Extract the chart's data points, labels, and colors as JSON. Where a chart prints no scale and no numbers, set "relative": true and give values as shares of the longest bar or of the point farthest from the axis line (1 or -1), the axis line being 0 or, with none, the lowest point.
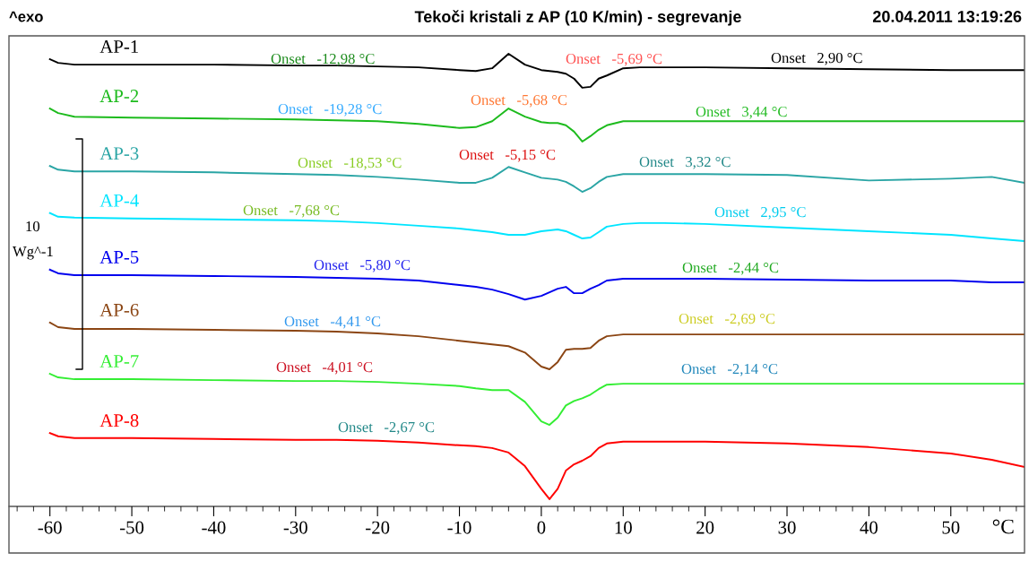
{
  "chart_data": {
    "type": "line",
    "title": "Tekoči kristali z AP (10 K/min) - segrevanje",
    "xlabel": "°C",
    "ylabel": "Wg^-1",
    "relative": true,
    "grid": false,
    "legend": false,
    "tick_labels": "x",
    "marker": "none",
    "line_style": "solid",
    "x": [
      -60,
      -59,
      -57,
      -50,
      -40,
      -30,
      -25,
      -20,
      -15,
      -10,
      -8,
      -6,
      -4,
      -2,
      0,
      1,
      2,
      3,
      4,
      5,
      6,
      7,
      8,
      10,
      12,
      15,
      20,
      30,
      40,
      50,
      55,
      59
    ],
    "xlim": [
      -65,
      59
    ],
    "xticks": [
      -60,
      -50,
      -40,
      -30,
      -20,
      -10,
      0,
      10,
      20,
      30,
      40,
      50
    ],
    "series": [
      {
        "name": "AP-1",
        "color": "#000000",
        "values": [
          0.988,
          0.98,
          0.976,
          0.976,
          0.976,
          0.974,
          0.974,
          0.972,
          0.97,
          0.964,
          0.962,
          0.968,
          1,
          0.976,
          0.964,
          0.962,
          0.96,
          0.956,
          0.945,
          0.925,
          0.927,
          0.945,
          0.952,
          0.968,
          0.97,
          0.97,
          0.97,
          0.968,
          0.966,
          0.964,
          0.964,
          0.964
        ]
      },
      {
        "name": "AP-2",
        "color": "#1dbb1d",
        "values": [
          0.879,
          0.869,
          0.861,
          0.859,
          0.857,
          0.855,
          0.853,
          0.851,
          0.845,
          0.836,
          0.838,
          0.851,
          0.879,
          0.861,
          0.849,
          0.847,
          0.847,
          0.842,
          0.828,
          0.806,
          0.818,
          0.832,
          0.842,
          0.851,
          0.851,
          0.851,
          0.851,
          0.851,
          0.851,
          0.851,
          0.851,
          0.851
        ]
      },
      {
        "name": "AP-3",
        "color": "#2aa5a5",
        "values": [
          0.752,
          0.744,
          0.74,
          0.74,
          0.738,
          0.734,
          0.732,
          0.728,
          0.722,
          0.715,
          0.715,
          0.726,
          0.75,
          0.738,
          0.726,
          0.724,
          0.722,
          0.717,
          0.707,
          0.695,
          0.703,
          0.717,
          0.728,
          0.734,
          0.734,
          0.734,
          0.734,
          0.732,
          0.72,
          0.724,
          0.728,
          0.715
        ]
      },
      {
        "name": "AP-4",
        "color": "#00e5ff",
        "values": [
          0.648,
          0.64,
          0.638,
          0.636,
          0.634,
          0.632,
          0.63,
          0.626,
          0.62,
          0.614,
          0.61,
          0.606,
          0.6,
          0.6,
          0.608,
          0.61,
          0.612,
          0.608,
          0.6,
          0.592,
          0.594,
          0.606,
          0.618,
          0.624,
          0.626,
          0.626,
          0.624,
          0.616,
          0.608,
          0.6,
          0.592,
          0.586
        ]
      },
      {
        "name": "AP-5",
        "color": "#0000ee",
        "values": [
          0.523,
          0.515,
          0.511,
          0.511,
          0.509,
          0.507,
          0.505,
          0.503,
          0.499,
          0.489,
          0.485,
          0.479,
          0.469,
          0.457,
          0.465,
          0.473,
          0.481,
          0.485,
          0.471,
          0.471,
          0.481,
          0.489,
          0.499,
          0.503,
          0.503,
          0.503,
          0.503,
          0.501,
          0.499,
          0.499,
          0.495,
          0.495
        ]
      },
      {
        "name": "AP-6",
        "color": "#8b4513",
        "values": [
          0.406,
          0.396,
          0.392,
          0.392,
          0.39,
          0.388,
          0.386,
          0.382,
          0.376,
          0.366,
          0.362,
          0.358,
          0.354,
          0.34,
          0.309,
          0.303,
          0.319,
          0.346,
          0.348,
          0.348,
          0.35,
          0.366,
          0.376,
          0.38,
          0.38,
          0.38,
          0.38,
          0.38,
          0.38,
          0.38,
          0.38,
          0.38
        ]
      },
      {
        "name": "AP-7",
        "color": "#33ee33",
        "values": [
          0.293,
          0.285,
          0.281,
          0.281,
          0.279,
          0.277,
          0.277,
          0.275,
          0.271,
          0.266,
          0.261,
          0.257,
          0.257,
          0.231,
          0.188,
          0.18,
          0.196,
          0.223,
          0.233,
          0.239,
          0.247,
          0.259,
          0.269,
          0.271,
          0.271,
          0.271,
          0.271,
          0.271,
          0.271,
          0.271,
          0.271,
          0.271
        ]
      },
      {
        "name": "AP-8",
        "color": "#ff0000",
        "values": [
          0.162,
          0.155,
          0.151,
          0.151,
          0.149,
          0.147,
          0.147,
          0.145,
          0.141,
          0.135,
          0.133,
          0.129,
          0.119,
          0.089,
          0.039,
          0.016,
          0.039,
          0.079,
          0.093,
          0.101,
          0.111,
          0.129,
          0.139,
          0.143,
          0.143,
          0.143,
          0.143,
          0.139,
          0.131,
          0.117,
          0.103,
          0.087
        ]
      }
    ],
    "annotations": [
      "^exo",
      "20.04.2011 13:19:26",
      "10",
      "Onset   -12,98 °C",
      "Onset   -5,69 °C",
      "Onset   2,90 °C",
      "Onset   -19,28 °C",
      "Onset   -5,68 °C",
      "Onset   3,44 °C",
      "Onset   -18,53 °C",
      "Onset   -5,15 °C",
      "Onset   3,32 °C",
      "Onset   -7,68 °C",
      "Onset   2,95 °C",
      "Onset   -5,80 °C",
      "Onset   -2,44 °C",
      "Onset   -4,41 °C",
      "Onset   -2,69 °C",
      "Onset   -4,01 °C",
      "Onset   -2,14 °C",
      "Onset   -2,67 °C"
    ]
  }
}
